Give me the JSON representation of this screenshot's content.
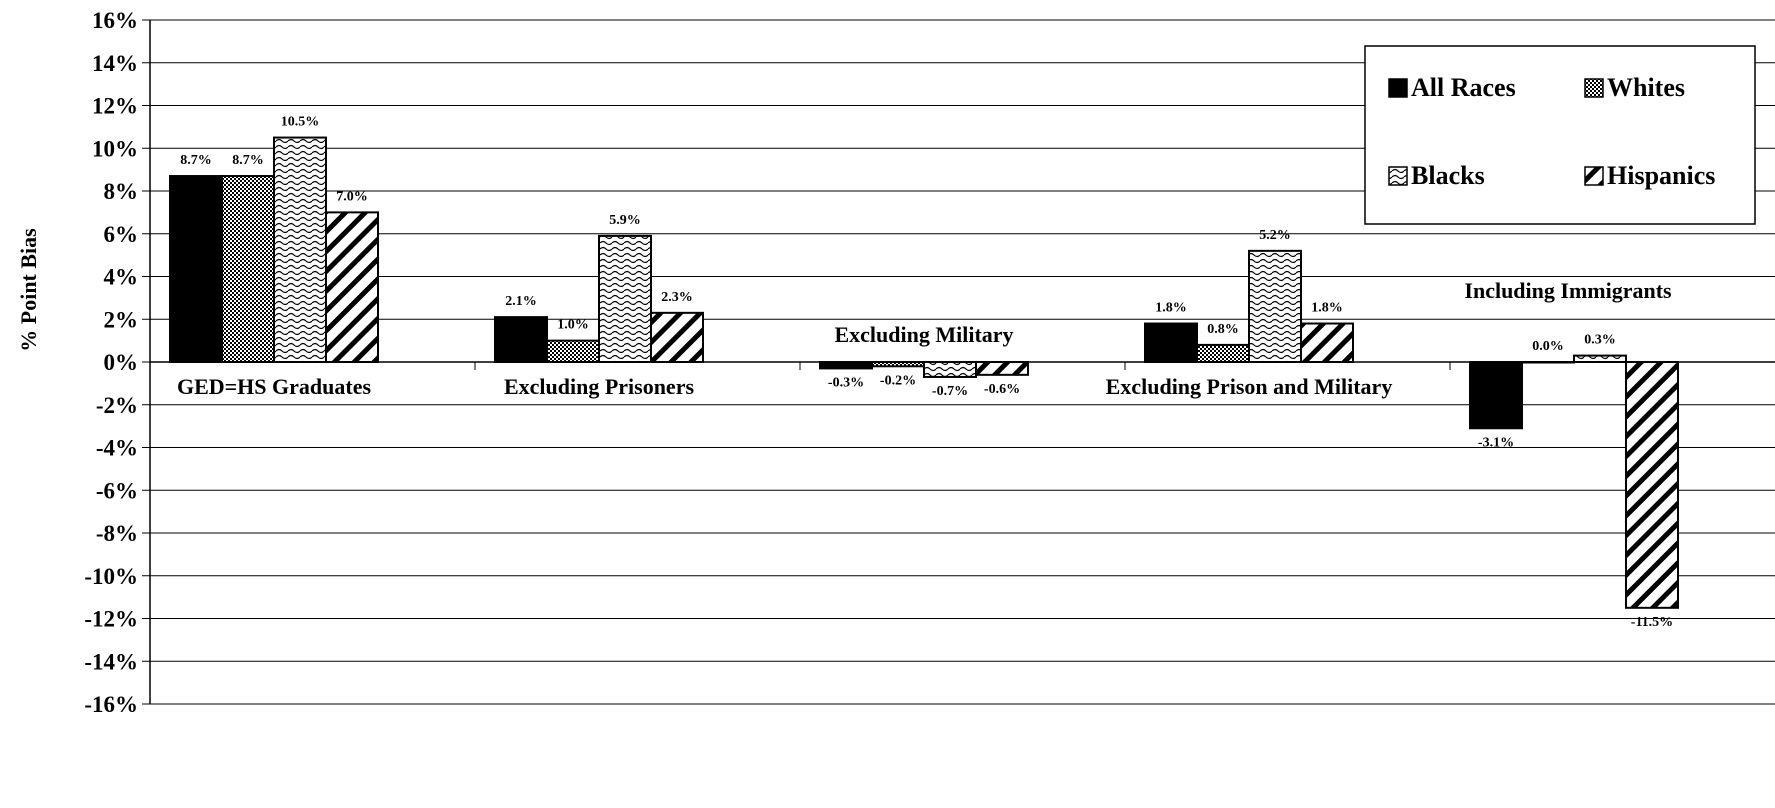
{
  "chart_data": {
    "type": "bar",
    "title": "",
    "ylabel": "% Point Bias",
    "ylim": [
      -16,
      16
    ],
    "ytick_step": 2,
    "ytick_suffix": "%",
    "grid": true,
    "legend_placement": "top-right",
    "categories": [
      "GED=HS Graduates",
      "Excluding Prisoners",
      "Excluding Military",
      "Excluding Prison and Military",
      "Including Immigrants"
    ],
    "series": [
      {
        "name": "All Races",
        "pattern": "solid",
        "values": [
          8.7,
          2.1,
          -0.3,
          1.8,
          -3.1
        ],
        "labels": [
          "8.7%",
          "2.1%",
          "-0.3%",
          "1.8%",
          "-3.1%"
        ]
      },
      {
        "name": "Whites",
        "pattern": "crosshatch",
        "values": [
          8.7,
          1.0,
          -0.2,
          0.8,
          0.0
        ],
        "labels": [
          "8.7%",
          "1.0%",
          "-0.2%",
          "0.8%",
          "0.0%"
        ]
      },
      {
        "name": "Blacks",
        "pattern": "wave",
        "values": [
          10.5,
          5.9,
          -0.7,
          5.2,
          0.3
        ],
        "labels": [
          "10.5%",
          "5.9%",
          "-0.7%",
          "5.2%",
          "0.3%"
        ]
      },
      {
        "name": "Hispanics",
        "pattern": "diagonal",
        "values": [
          7.0,
          2.3,
          -0.6,
          1.8,
          -11.5
        ],
        "labels": [
          "7.0%",
          "2.3%",
          "-0.6%",
          "1.8%",
          "-11.5%"
        ]
      }
    ],
    "colors": {
      "bar_fill": "#000000",
      "bar_stroke": "#000000",
      "grid": "#000000",
      "background": "#ffffff"
    }
  }
}
